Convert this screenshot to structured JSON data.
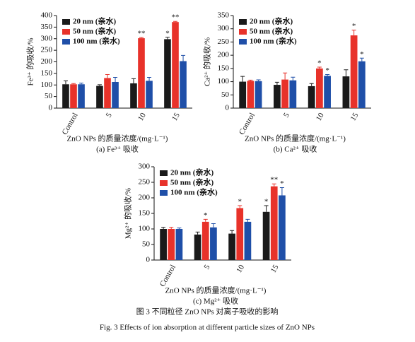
{
  "chart_data": [
    {
      "type": "bar",
      "subtitle": "(a) Fe³⁺ 吸收",
      "ylabel": "Fe³⁺ 的吸收/%",
      "xlabel": "ZnO NPs 的质量浓度/(mg·L⁻¹)",
      "categories": [
        "Control",
        "5",
        "10",
        "15"
      ],
      "ylim": [
        0,
        400
      ],
      "yticks": [
        0,
        50,
        100,
        150,
        200,
        250,
        300,
        350,
        400
      ],
      "legend": "upper left",
      "series": [
        {
          "name": "20 nm (亲水)",
          "color": "#1a1a1a",
          "values": [
            103,
            96,
            107,
            298
          ],
          "errors": [
            15,
            5,
            20,
            8
          ],
          "annotations": [
            null,
            null,
            null,
            "*"
          ]
        },
        {
          "name": "50 nm (亲水)",
          "color": "#e8322a",
          "values": [
            103,
            130,
            302,
            372
          ],
          "errors": [
            3,
            15,
            3,
            3
          ],
          "annotations": [
            null,
            null,
            "**",
            "**"
          ]
        },
        {
          "name": "100 nm (亲水)",
          "color": "#1f4fa8",
          "values": [
            103,
            113,
            118,
            203
          ],
          "errors": [
            5,
            20,
            15,
            25
          ],
          "annotations": [
            null,
            null,
            null,
            null
          ]
        }
      ]
    },
    {
      "type": "bar",
      "subtitle": "(b) Ca²⁺ 吸收",
      "ylabel": "Ca²⁺ 的吸收/%",
      "xlabel": "ZnO NPs 的质量浓度/(mg·L⁻¹)",
      "categories": [
        "Control",
        "5",
        "10",
        "15"
      ],
      "ylim": [
        0,
        350
      ],
      "yticks": [
        0,
        50,
        100,
        150,
        200,
        250,
        300,
        350
      ],
      "legend": "upper left",
      "series": [
        {
          "name": "20 nm (亲水)",
          "color": "#1a1a1a",
          "values": [
            100,
            88,
            83,
            120
          ],
          "errors": [
            20,
            10,
            10,
            25
          ],
          "annotations": [
            null,
            null,
            null,
            null
          ]
        },
        {
          "name": "50 nm (亲水)",
          "color": "#e8322a",
          "values": [
            103,
            108,
            150,
            275
          ],
          "errors": [
            3,
            25,
            5,
            20
          ],
          "annotations": [
            null,
            null,
            "*",
            "*"
          ]
        },
        {
          "name": "100 nm (亲水)",
          "color": "#1f4fa8",
          "values": [
            102,
            105,
            122,
            177
          ],
          "errors": [
            5,
            12,
            5,
            12
          ],
          "annotations": [
            null,
            null,
            "*",
            "*"
          ]
        }
      ]
    },
    {
      "type": "bar",
      "subtitle": "(c) Mg²⁺ 吸收",
      "ylabel": "Mg²⁺ 的吸收/%",
      "xlabel": "ZnO NPs 的质量浓度/(mg·L⁻¹)",
      "categories": [
        "Control",
        "5",
        "10",
        "15"
      ],
      "ylim": [
        0,
        300
      ],
      "yticks": [
        0,
        50,
        100,
        150,
        200,
        250,
        300
      ],
      "legend": "upper left",
      "series": [
        {
          "name": "20 nm (亲水)",
          "color": "#1a1a1a",
          "values": [
            100,
            82,
            85,
            155
          ],
          "errors": [
            5,
            8,
            10,
            20
          ],
          "annotations": [
            null,
            null,
            null,
            "*"
          ]
        },
        {
          "name": "50 nm (亲水)",
          "color": "#e8322a",
          "values": [
            100,
            123,
            167,
            237
          ],
          "errors": [
            5,
            8,
            8,
            8
          ],
          "annotations": [
            null,
            "*",
            "*",
            "**"
          ]
        },
        {
          "name": "100 nm (亲水)",
          "color": "#1f4fa8",
          "values": [
            100,
            105,
            123,
            208
          ],
          "errors": [
            3,
            12,
            8,
            25
          ],
          "annotations": [
            null,
            null,
            null,
            "*"
          ]
        }
      ]
    }
  ],
  "caption_cn": "图 3  不同粒径 ZnO NPs 对离子吸收的影响",
  "caption_en": "Fig. 3  Effects of ion absorption at different particle sizes of ZnO NPs"
}
